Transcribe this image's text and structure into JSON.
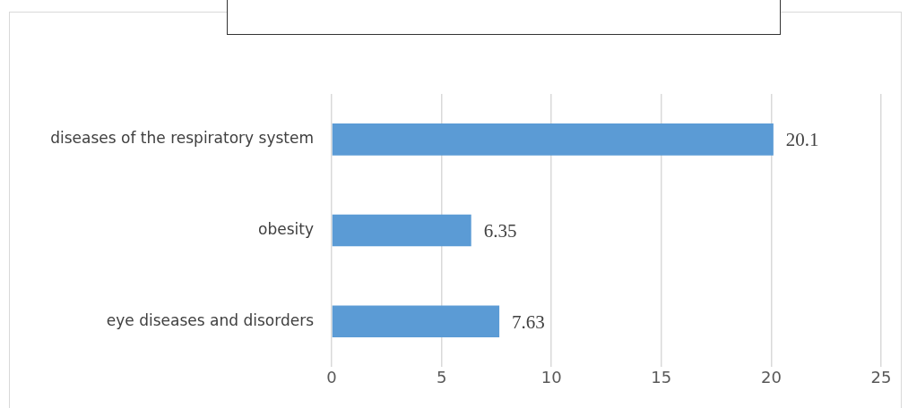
{
  "chart_data": {
    "type": "bar",
    "orientation": "horizontal",
    "categories": [
      "diseases of the respiratory system",
      "obesity",
      "eye diseases and disorders"
    ],
    "series": [
      {
        "color": "#5b9bd5",
        "values": [
          20.1,
          6.35,
          7.63
        ]
      }
    ],
    "xlim": [
      0,
      25
    ],
    "xticks": [
      0,
      5,
      10,
      15,
      20,
      25
    ],
    "grid": "x",
    "legend": false,
    "data_labels": true
  }
}
